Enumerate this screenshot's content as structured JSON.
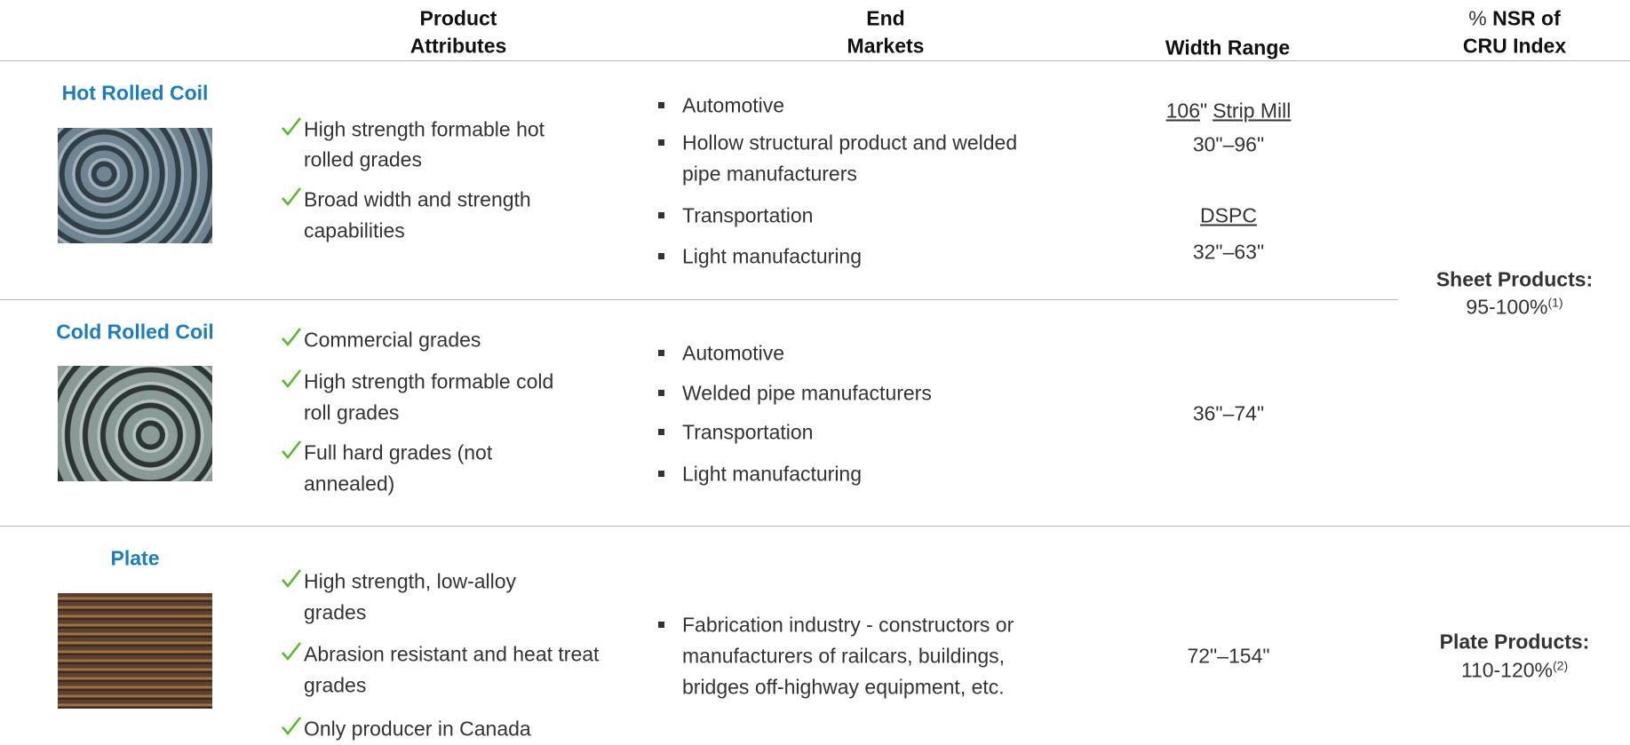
{
  "header": {
    "attributes": [
      "Product",
      "Attributes"
    ],
    "markets": [
      "End",
      "Markets"
    ],
    "width": "Width Range",
    "nsr_prefix": "%",
    "nsr": [
      "NSR of",
      "CRU Index"
    ]
  },
  "rows": [
    {
      "name": "Hot Rolled Coil",
      "attributes": [
        [
          "High strength formable hot",
          "rolled grades"
        ],
        [
          "Broad width and  strength",
          "capabilities"
        ]
      ],
      "markets": [
        [
          "Automotive"
        ],
        [
          "Hollow structural product and welded",
          "pipe manufacturers"
        ],
        [
          "Transportation"
        ],
        [
          "Light manufacturing"
        ]
      ],
      "width": [
        {
          "mill": [
            "106",
            "\"",
            "Strip Mill"
          ],
          "range": "30\"–96\""
        },
        {
          "mill": [
            "DSPC"
          ],
          "range": "32\"–63\""
        }
      ]
    },
    {
      "name": "Cold Rolled Coil",
      "attributes": [
        [
          "Commercial grades"
        ],
        [
          "High strength formable cold",
          "roll grades"
        ],
        [
          "Full hard grades (not",
          "annealed)"
        ]
      ],
      "markets": [
        [
          "Automotive"
        ],
        [
          "Welded pipe manufacturers"
        ],
        [
          "Transportation"
        ],
        [
          "Light manufacturing"
        ]
      ],
      "width": [
        {
          "range": "36\"–74\""
        }
      ]
    },
    {
      "name": "Plate",
      "attributes": [
        [
          "High strength, low-alloy",
          "grades"
        ],
        [
          "Abrasion resistant and heat treat",
          "grades"
        ],
        [
          "Only producer in Canada"
        ]
      ],
      "markets": [
        [
          "Fabrication industry - constructors or",
          "manufacturers of railcars, buildings,",
          "bridges off-highway equipment, etc."
        ]
      ],
      "width": [
        {
          "range": "72\"–154\""
        }
      ]
    }
  ],
  "nsr": [
    {
      "label": "Sheet Products:",
      "value": "95-100%",
      "note": "(1)"
    },
    {
      "label": "Plate Products:",
      "value": "110-120%",
      "note": "(2)"
    }
  ]
}
